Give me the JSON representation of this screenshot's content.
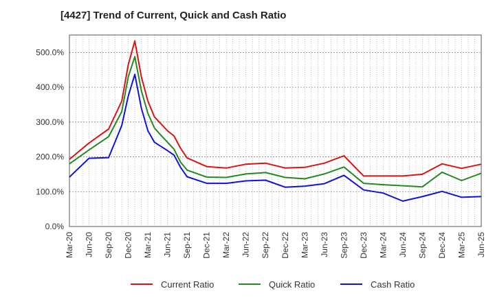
{
  "chart_data": {
    "type": "line",
    "title": "[4427]  Trend of Current, Quick and Cash Ratio",
    "xlabel": "",
    "ylabel": "",
    "ylim": [
      0,
      550
    ],
    "y_ticks": [
      0,
      100,
      200,
      300,
      400,
      500
    ],
    "y_tick_labels": [
      "0.0%",
      "100.0%",
      "200.0%",
      "300.0%",
      "400.0%",
      "500.0%"
    ],
    "x_tick_labels": [
      "Mar-20",
      "Jun-20",
      "Sep-20",
      "Dec-20",
      "Mar-21",
      "Jun-21",
      "Sep-21",
      "Dec-21",
      "Mar-22",
      "Jun-22",
      "Sep-22",
      "Dec-22",
      "Mar-23",
      "Jun-23",
      "Sep-23",
      "Dec-23",
      "Mar-24",
      "Jun-24",
      "Sep-24",
      "Dec-24",
      "Mar-25",
      "Jun-25"
    ],
    "grid": true,
    "legend_position": "bottom",
    "x_months": [
      0,
      3,
      6,
      8,
      9,
      10,
      11,
      12,
      13,
      14,
      15,
      16,
      17,
      18,
      21,
      24,
      27,
      30,
      33,
      36,
      39,
      42,
      45,
      48,
      51,
      54,
      57,
      60,
      63,
      66,
      69,
      72
    ],
    "series": [
      {
        "name": "Current Ratio",
        "color": "#dd1111",
        "values": [
          193,
          240,
          280,
          360,
          465,
          533,
          430,
          360,
          315,
          295,
          275,
          260,
          225,
          197,
          172,
          168,
          179,
          182,
          168,
          170,
          182,
          203,
          145,
          145,
          145,
          150,
          180,
          167,
          179,
          null,
          null,
          null
        ]
      },
      {
        "name": "Quick Ratio",
        "color": "#228822",
        "values": [
          180,
          220,
          258,
          330,
          430,
          488,
          390,
          325,
          283,
          262,
          242,
          222,
          185,
          162,
          142,
          141,
          151,
          155,
          141,
          137,
          151,
          171,
          124,
          120,
          117,
          114,
          156,
          132,
          153,
          null,
          null,
          null
        ]
      },
      {
        "name": "Cash Ratio",
        "color": "#1111dd",
        "values": [
          142,
          196,
          198,
          290,
          375,
          437,
          340,
          275,
          242,
          230,
          218,
          205,
          170,
          143,
          124,
          124,
          131,
          133,
          113,
          116,
          123,
          147,
          105,
          96,
          73,
          86,
          101,
          84,
          86,
          null,
          null,
          null
        ]
      }
    ]
  }
}
